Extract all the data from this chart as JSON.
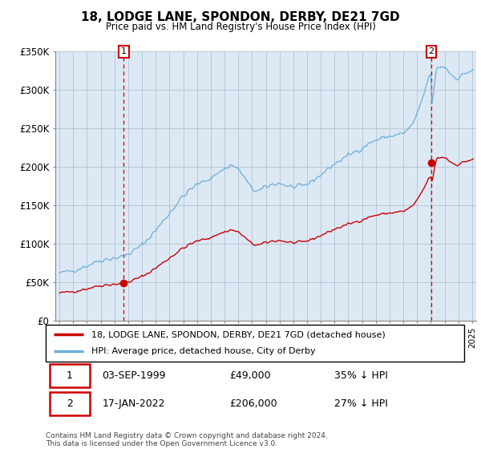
{
  "title": "18, LODGE LANE, SPONDON, DERBY, DE21 7GD",
  "subtitle": "Price paid vs. HM Land Registry's House Price Index (HPI)",
  "legend_line1": "18, LODGE LANE, SPONDON, DERBY, DE21 7GD (detached house)",
  "legend_line2": "HPI: Average price, detached house, City of Derby",
  "footer": "Contains HM Land Registry data © Crown copyright and database right 2024.\nThis data is licensed under the Open Government Licence v3.0.",
  "purchase1_date": "03-SEP-1999",
  "purchase1_price": 49000,
  "purchase1_label": "1",
  "purchase1_year": 1999.67,
  "purchase2_date": "17-JAN-2022",
  "purchase2_price": 206000,
  "purchase2_label": "2",
  "purchase2_year": 2022.04,
  "purchase1_hpi_note": "35% ↓ HPI",
  "purchase2_hpi_note": "27% ↓ HPI",
  "hpi_color": "#6baed6",
  "price_color": "#cc0000",
  "marker_color": "#cc0000",
  "vline_color": "#cc0000",
  "background_color": "#dce9f5",
  "plot_bg_color": "#dce9f5",
  "grid_color": "#aabbcc",
  "ylim": [
    0,
    350000
  ],
  "yticks": [
    0,
    50000,
    100000,
    150000,
    200000,
    250000,
    300000,
    350000
  ],
  "ytick_labels": [
    "£0",
    "£50K",
    "£100K",
    "£150K",
    "£200K",
    "£250K",
    "£300K",
    "£350K"
  ],
  "xlim_start": 1994.7,
  "xlim_end": 2025.3
}
